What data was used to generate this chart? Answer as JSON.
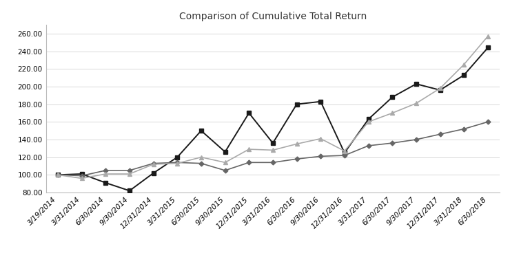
{
  "title": "Comparison of Cumulative Total Return",
  "x_labels": [
    "3/19/2014",
    "3/31/2014",
    "6/30/2014",
    "9/30/2014",
    "12/31/2014",
    "3/31/2015",
    "6/30/2015",
    "9/30/2015",
    "12/31/2015",
    "3/31/2016",
    "6/30/2016",
    "9/30/2016",
    "12/31/2016",
    "3/31/2017",
    "6/30/2017",
    "9/30/2017",
    "12/31/2017",
    "3/31/2018",
    "6/30/2018"
  ],
  "pcty": [
    100.0,
    101.0,
    91.0,
    82.0,
    102.0,
    120.0,
    150.0,
    126.0,
    170.0,
    136.0,
    180.0,
    183.0,
    125.0,
    163.0,
    188.0,
    203.0,
    196.0,
    213.0,
    244.0
  ],
  "sp500": [
    100.0,
    99.0,
    105.0,
    105.0,
    113.0,
    114.0,
    113.0,
    105.0,
    114.0,
    114.0,
    118.0,
    121.0,
    122.0,
    133.0,
    136.0,
    140.0,
    146.0,
    152.0,
    160.0
  ],
  "sp1500_app": [
    100.0,
    96.0,
    101.0,
    101.0,
    112.0,
    113.0,
    120.0,
    114.0,
    129.0,
    128.0,
    135.0,
    141.0,
    127.0,
    160.0,
    170.0,
    181.0,
    198.0,
    225.0,
    257.0
  ],
  "ylim": [
    80.0,
    270.0
  ],
  "yticks": [
    80.0,
    100.0,
    120.0,
    140.0,
    160.0,
    180.0,
    200.0,
    220.0,
    240.0,
    260.0
  ],
  "pcty_color": "#1a1a1a",
  "sp500_color": "#666666",
  "sp1500_color": "#aaaaaa",
  "bg_color": "#ffffff",
  "grid_color": "#d8d8d8",
  "title_fontsize": 10,
  "tick_fontsize": 7.5
}
